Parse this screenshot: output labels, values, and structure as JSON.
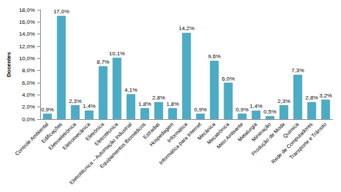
{
  "chart_data": {
    "type": "bar",
    "y_label": "Docentes",
    "categories": [
      "Controle Ambiental",
      "Edificações",
      "Eletroeletrônica",
      "Eletromecânica",
      "Eletrônica",
      "Eletrotécnica",
      "Eletrotécnica – Automação Industrial",
      "Equipamentos Biomédicos",
      "Estradas",
      "Hospedagem",
      "Informática",
      "Informática para Internet",
      "Mecânica",
      "Mecatrônica",
      "Meio Ambiente",
      "Metalurgia",
      "Mineração",
      "Produção de Moda",
      "Química",
      "Rede de Computadores",
      "Transporte e Trânsito"
    ],
    "values": [
      0.9,
      17.0,
      2.3,
      1.4,
      8.7,
      10.1,
      4.1,
      1.8,
      2.8,
      1.8,
      14.2,
      0.9,
      9.6,
      6.0,
      0.9,
      1.4,
      0.5,
      2.3,
      7.3,
      2.8,
      3.2
    ],
    "value_labels": [
      "0,9%",
      "17,0%",
      "2,3%",
      "1,4%",
      "8,7%",
      "10,1%",
      "4,1%",
      "1,8%",
      "2,8%",
      "1,8%",
      "14,2%",
      "0,9%",
      "9,6%",
      "6,0%",
      "0,9%",
      "1,4%",
      "0,5%",
      "2,3%",
      "7,3%",
      "2,8%",
      "3,2%"
    ],
    "color": "#4bacc6",
    "ylim": [
      0,
      18
    ],
    "yticks": [
      {
        "value": 0,
        "label": "0,0%"
      },
      {
        "value": 2,
        "label": "2,0%"
      },
      {
        "value": 4,
        "label": "4,0%"
      },
      {
        "value": 6,
        "label": "6,0%"
      },
      {
        "value": 8,
        "label": "8,0%"
      },
      {
        "value": 10,
        "label": "10,0%"
      },
      {
        "value": 12,
        "label": "12,0%"
      },
      {
        "value": 14,
        "label": "14,0%"
      },
      {
        "value": 16,
        "label": "16,0%"
      },
      {
        "value": 18,
        "label": "18,0%"
      }
    ],
    "grid": false,
    "data_labels": true
  }
}
